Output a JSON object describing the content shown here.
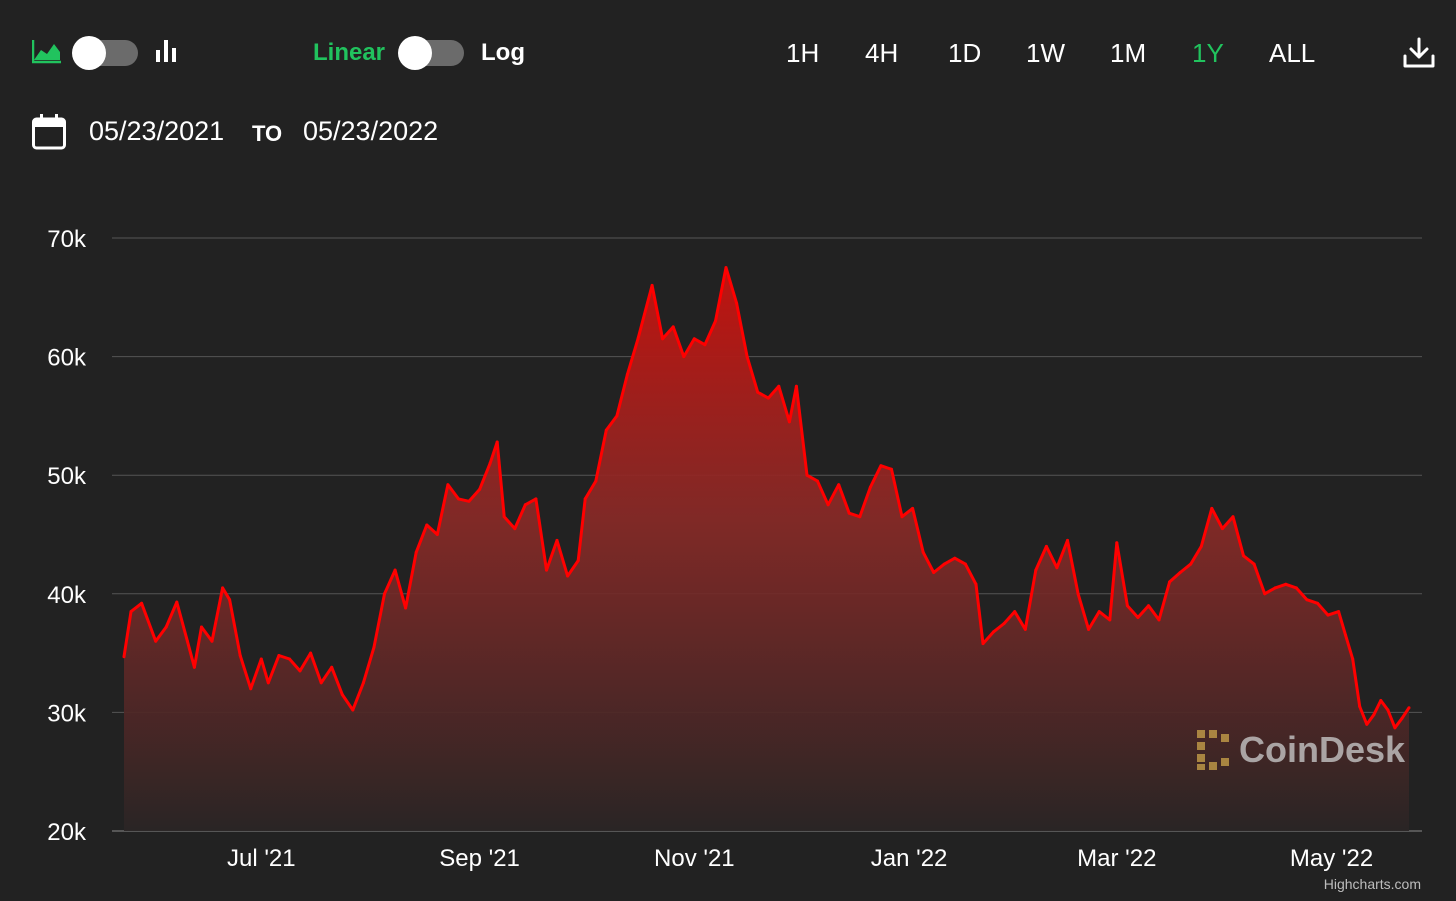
{
  "toolbar": {
    "chart_type_icons": [
      "area-chart-icon",
      "bar-chart-icon"
    ],
    "scale_left_label": "Linear",
    "scale_right_label": "Log",
    "ranges": [
      "1H",
      "4H",
      "1D",
      "1W",
      "1M",
      "1Y",
      "ALL"
    ],
    "active_range": "1Y",
    "download_icon": "download-icon",
    "accent_color": "#21c35e"
  },
  "date_range": {
    "calendar_icon": "calendar-icon",
    "from": "05/23/2021",
    "to_label": "TO",
    "to": "05/23/2022"
  },
  "watermark": "CoinDesk",
  "credit": "Highcharts.com",
  "chart_data": {
    "type": "area",
    "title": "",
    "xlabel": "",
    "ylabel": "",
    "ylim": [
      20000,
      70000
    ],
    "yticks": [
      20000,
      30000,
      40000,
      50000,
      60000,
      70000
    ],
    "ytick_labels": [
      "20k",
      "30k",
      "40k",
      "50k",
      "60k",
      "70k"
    ],
    "xtick_labels": [
      {
        "label": "Jul '21",
        "date": "2021-07-01"
      },
      {
        "label": "Sep '21",
        "date": "2021-09-01"
      },
      {
        "label": "Nov '21",
        "date": "2021-11-01"
      },
      {
        "label": "Jan '22",
        "date": "2022-01-01"
      },
      {
        "label": "Mar '22",
        "date": "2022-03-01"
      },
      {
        "label": "May '22",
        "date": "2022-05-01"
      }
    ],
    "grid": true,
    "legend": "none",
    "line_color": "#ff0000",
    "series": [
      {
        "points": [
          [
            "2021-05-23",
            34700
          ],
          [
            "2021-05-25",
            38500
          ],
          [
            "2021-05-28",
            39200
          ],
          [
            "2021-06-01",
            36000
          ],
          [
            "2021-06-04",
            37200
          ],
          [
            "2021-06-07",
            39300
          ],
          [
            "2021-06-10",
            36000
          ],
          [
            "2021-06-12",
            33800
          ],
          [
            "2021-06-14",
            37200
          ],
          [
            "2021-06-17",
            36000
          ],
          [
            "2021-06-20",
            40500
          ],
          [
            "2021-06-22",
            39500
          ],
          [
            "2021-06-25",
            34800
          ],
          [
            "2021-06-28",
            32000
          ],
          [
            "2021-07-01",
            34500
          ],
          [
            "2021-07-03",
            32500
          ],
          [
            "2021-07-06",
            34800
          ],
          [
            "2021-07-09",
            34500
          ],
          [
            "2021-07-12",
            33500
          ],
          [
            "2021-07-15",
            35000
          ],
          [
            "2021-07-18",
            32500
          ],
          [
            "2021-07-21",
            33800
          ],
          [
            "2021-07-24",
            31500
          ],
          [
            "2021-07-27",
            30200
          ],
          [
            "2021-07-30",
            32500
          ],
          [
            "2021-08-02",
            35500
          ],
          [
            "2021-08-05",
            40000
          ],
          [
            "2021-08-08",
            42000
          ],
          [
            "2021-08-11",
            38800
          ],
          [
            "2021-08-14",
            43500
          ],
          [
            "2021-08-17",
            45800
          ],
          [
            "2021-08-20",
            45000
          ],
          [
            "2021-08-23",
            49200
          ],
          [
            "2021-08-26",
            48000
          ],
          [
            "2021-08-29",
            47800
          ],
          [
            "2021-09-01",
            48800
          ],
          [
            "2021-09-04",
            51000
          ],
          [
            "2021-09-06",
            52800
          ],
          [
            "2021-09-08",
            46500
          ],
          [
            "2021-09-11",
            45500
          ],
          [
            "2021-09-14",
            47500
          ],
          [
            "2021-09-17",
            48000
          ],
          [
            "2021-09-20",
            42000
          ],
          [
            "2021-09-23",
            44500
          ],
          [
            "2021-09-26",
            41500
          ],
          [
            "2021-09-29",
            42800
          ],
          [
            "2021-10-01",
            48000
          ],
          [
            "2021-10-04",
            49500
          ],
          [
            "2021-10-07",
            53800
          ],
          [
            "2021-10-10",
            55000
          ],
          [
            "2021-10-13",
            58500
          ],
          [
            "2021-10-16",
            61500
          ],
          [
            "2021-10-20",
            66000
          ],
          [
            "2021-10-23",
            61500
          ],
          [
            "2021-10-26",
            62500
          ],
          [
            "2021-10-29",
            60000
          ],
          [
            "2021-11-01",
            61500
          ],
          [
            "2021-11-04",
            61000
          ],
          [
            "2021-11-07",
            63000
          ],
          [
            "2021-11-10",
            67500
          ],
          [
            "2021-11-13",
            64500
          ],
          [
            "2021-11-16",
            60000
          ],
          [
            "2021-11-19",
            57000
          ],
          [
            "2021-11-22",
            56500
          ],
          [
            "2021-11-25",
            57500
          ],
          [
            "2021-11-28",
            54500
          ],
          [
            "2021-11-30",
            57500
          ],
          [
            "2021-12-03",
            50000
          ],
          [
            "2021-12-06",
            49500
          ],
          [
            "2021-12-09",
            47500
          ],
          [
            "2021-12-12",
            49200
          ],
          [
            "2021-12-15",
            46800
          ],
          [
            "2021-12-18",
            46500
          ],
          [
            "2021-12-21",
            49000
          ],
          [
            "2021-12-24",
            50800
          ],
          [
            "2021-12-27",
            50500
          ],
          [
            "2021-12-30",
            46500
          ],
          [
            "2022-01-02",
            47200
          ],
          [
            "2022-01-05",
            43500
          ],
          [
            "2022-01-08",
            41800
          ],
          [
            "2022-01-11",
            42500
          ],
          [
            "2022-01-14",
            43000
          ],
          [
            "2022-01-17",
            42500
          ],
          [
            "2022-01-20",
            40800
          ],
          [
            "2022-01-22",
            35800
          ],
          [
            "2022-01-25",
            36800
          ],
          [
            "2022-01-28",
            37500
          ],
          [
            "2022-01-31",
            38500
          ],
          [
            "2022-02-03",
            37000
          ],
          [
            "2022-02-06",
            42000
          ],
          [
            "2022-02-09",
            44000
          ],
          [
            "2022-02-12",
            42200
          ],
          [
            "2022-02-15",
            44500
          ],
          [
            "2022-02-18",
            40000
          ],
          [
            "2022-02-21",
            37000
          ],
          [
            "2022-02-24",
            38500
          ],
          [
            "2022-02-27",
            37800
          ],
          [
            "2022-03-01",
            44300
          ],
          [
            "2022-03-04",
            39000
          ],
          [
            "2022-03-07",
            38000
          ],
          [
            "2022-03-10",
            39000
          ],
          [
            "2022-03-13",
            37800
          ],
          [
            "2022-03-16",
            41000
          ],
          [
            "2022-03-19",
            41800
          ],
          [
            "2022-03-22",
            42500
          ],
          [
            "2022-03-25",
            44000
          ],
          [
            "2022-03-28",
            47200
          ],
          [
            "2022-03-31",
            45500
          ],
          [
            "2022-04-03",
            46500
          ],
          [
            "2022-04-06",
            43200
          ],
          [
            "2022-04-09",
            42500
          ],
          [
            "2022-04-12",
            40000
          ],
          [
            "2022-04-15",
            40500
          ],
          [
            "2022-04-18",
            40800
          ],
          [
            "2022-04-21",
            40500
          ],
          [
            "2022-04-24",
            39500
          ],
          [
            "2022-04-27",
            39200
          ],
          [
            "2022-04-30",
            38200
          ],
          [
            "2022-05-03",
            38500
          ],
          [
            "2022-05-05",
            36500
          ],
          [
            "2022-05-07",
            34500
          ],
          [
            "2022-05-09",
            30500
          ],
          [
            "2022-05-11",
            29000
          ],
          [
            "2022-05-13",
            29800
          ],
          [
            "2022-05-15",
            31000
          ],
          [
            "2022-05-17",
            30200
          ],
          [
            "2022-05-19",
            28700
          ],
          [
            "2022-05-21",
            29500
          ],
          [
            "2022-05-23",
            30400
          ]
        ]
      }
    ]
  }
}
